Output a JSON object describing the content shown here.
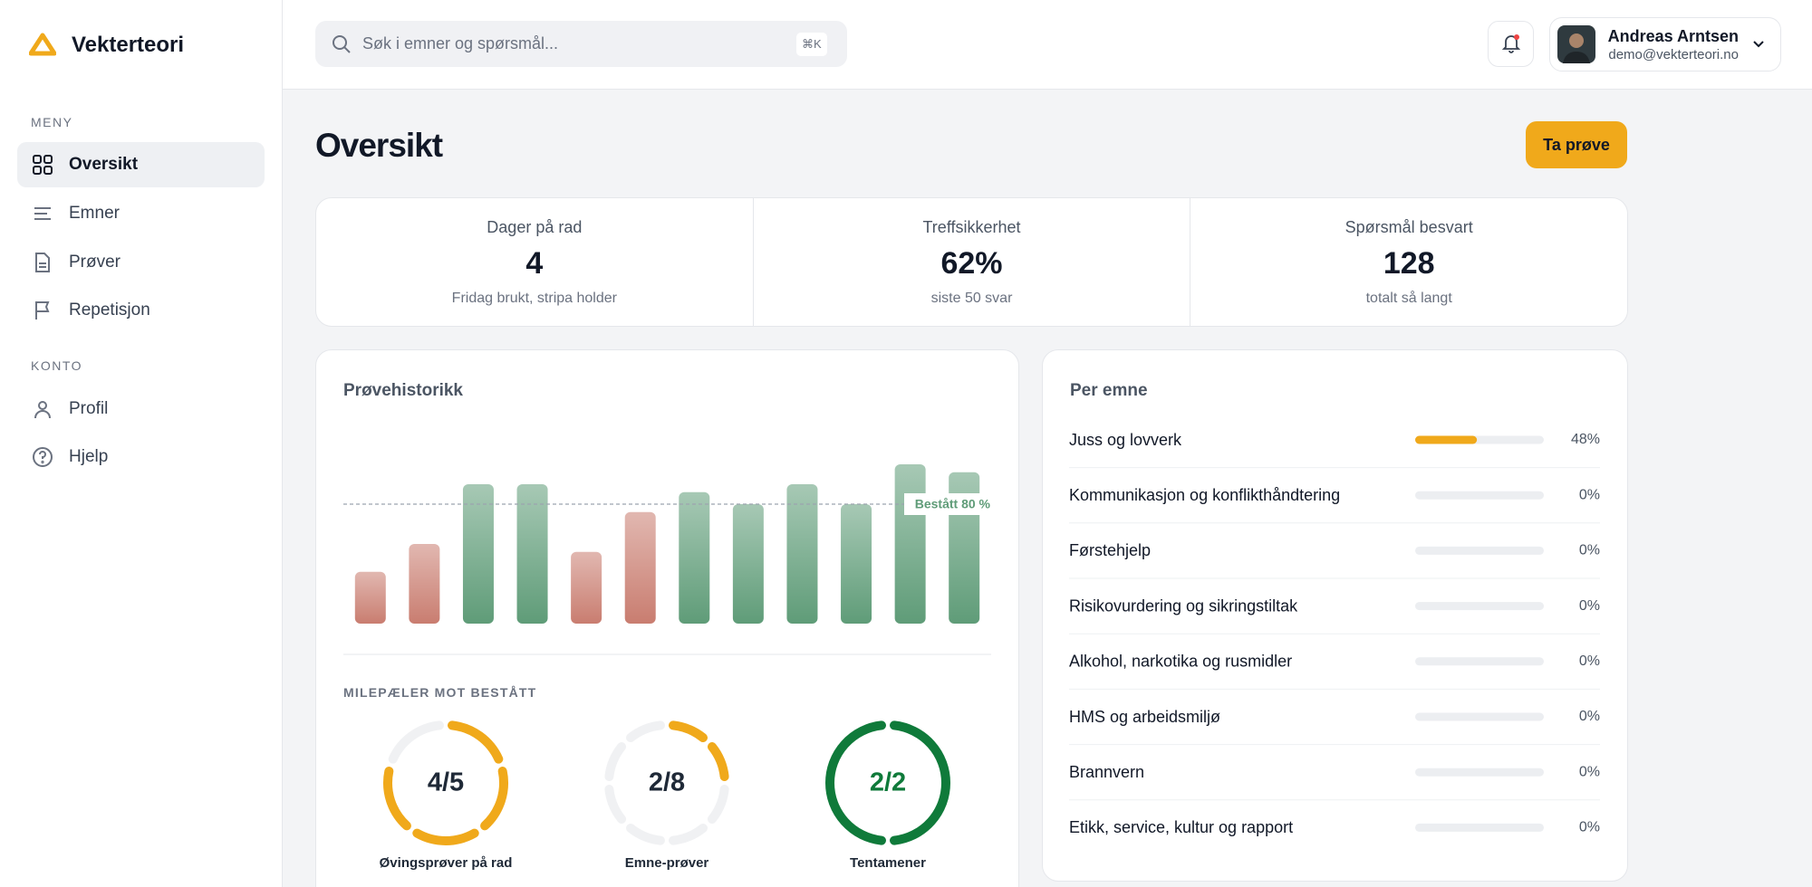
{
  "brand": "Vekterteori",
  "sidebar": {
    "sections": [
      {
        "title": "MENY",
        "items": [
          "Oversikt",
          "Emner",
          "Prøver",
          "Repetisjon"
        ]
      },
      {
        "title": "KONTO",
        "items": [
          "Profil",
          "Hjelp"
        ]
      }
    ]
  },
  "header": {
    "search_placeholder": "Søk i emner og spørsmål...",
    "shortcut": "⌘K",
    "user": {
      "name": "Andreas Arntsen",
      "email": "demo@vekterteori.no"
    }
  },
  "page": {
    "title": "Oversikt",
    "button": "Ta prøve"
  },
  "stats": [
    {
      "label": "Dager på rad",
      "value": "4",
      "sub": "Fridag brukt, stripa holder"
    },
    {
      "label": "Treffsikkerhet",
      "value": "62%",
      "sub": "siste 50 svar"
    },
    {
      "label": "Spørsmål besvart",
      "value": "128",
      "sub": "totalt så langt"
    }
  ],
  "chart": {
    "type": "bar",
    "title": "Prøvehistorikk",
    "values": [
      46,
      60,
      90,
      90,
      56,
      76,
      86,
      80,
      90,
      80,
      100,
      96
    ],
    "ylim": [
      20,
      100
    ],
    "threshold": 80,
    "threshold_label": "Bestått 80 %",
    "pass_color": "#5f9c78",
    "fail_color": "#c97d70"
  },
  "milestones": {
    "title": "MILEPÆLER MOT BESTÅTT",
    "items": [
      {
        "label": "4/5",
        "done": 4,
        "total": 5,
        "name": "Øvingsprøver på rad"
      },
      {
        "label": "2/8",
        "done": 2,
        "total": 8,
        "name": "Emne-prøver"
      },
      {
        "label": "2/2",
        "done": 2,
        "total": 2,
        "name": "Tentamener"
      }
    ]
  },
  "topics": {
    "title": "Per emne",
    "rows": [
      {
        "name": "Juss og lovverk",
        "value": 48,
        "value_label": "48%"
      },
      {
        "name": "Kommunikasjon og konflikthåndtering",
        "value": 0,
        "value_label": "0%"
      },
      {
        "name": "Førstehjelp",
        "value": 0,
        "value_label": "0%"
      },
      {
        "name": "Risikovurdering og sikringstiltak",
        "value": 0,
        "value_label": "0%"
      },
      {
        "name": "Alkohol, narkotika og rusmidler",
        "value": 0,
        "value_label": "0%"
      },
      {
        "name": "HMS og arbeidsmiljø",
        "value": 0,
        "value_label": "0%"
      },
      {
        "name": "Brannvern",
        "value": 0,
        "value_label": "0%"
      },
      {
        "name": "Etikk, service, kultur og rapport",
        "value": 0,
        "value_label": "0%"
      }
    ]
  }
}
